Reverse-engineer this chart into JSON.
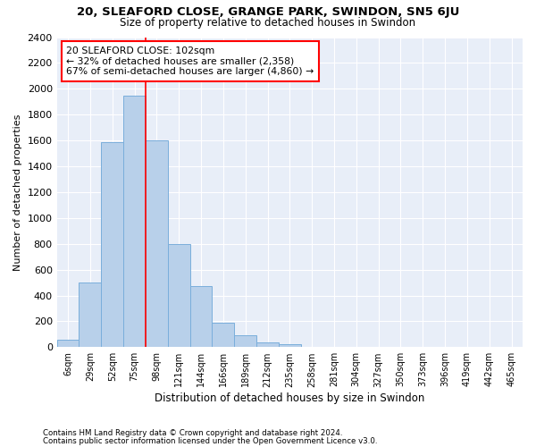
{
  "title1": "20, SLEAFORD CLOSE, GRANGE PARK, SWINDON, SN5 6JU",
  "title2": "Size of property relative to detached houses in Swindon",
  "xlabel": "Distribution of detached houses by size in Swindon",
  "ylabel": "Number of detached properties",
  "footnote1": "Contains HM Land Registry data © Crown copyright and database right 2024.",
  "footnote2": "Contains public sector information licensed under the Open Government Licence v3.0.",
  "categories": [
    "6sqm",
    "29sqm",
    "52sqm",
    "75sqm",
    "98sqm",
    "121sqm",
    "144sqm",
    "166sqm",
    "189sqm",
    "212sqm",
    "235sqm",
    "258sqm",
    "281sqm",
    "304sqm",
    "327sqm",
    "350sqm",
    "373sqm",
    "396sqm",
    "419sqm",
    "442sqm",
    "465sqm"
  ],
  "values": [
    60,
    500,
    1590,
    1950,
    1600,
    800,
    470,
    190,
    95,
    35,
    25,
    0,
    0,
    0,
    0,
    0,
    0,
    0,
    0,
    0,
    0
  ],
  "bar_color": "#b8d0ea",
  "bar_edge_color": "#7aaedb",
  "background_color": "#e8eef8",
  "grid_color": "#ffffff",
  "annotation_title": "20 SLEAFORD CLOSE: 102sqm",
  "annotation_line1": "← 32% of detached houses are smaller (2,358)",
  "annotation_line2": "67% of semi-detached houses are larger (4,860) →",
  "red_line_index": 4,
  "ylim": [
    0,
    2400
  ],
  "yticks": [
    0,
    200,
    400,
    600,
    800,
    1000,
    1200,
    1400,
    1600,
    1800,
    2000,
    2200,
    2400
  ]
}
